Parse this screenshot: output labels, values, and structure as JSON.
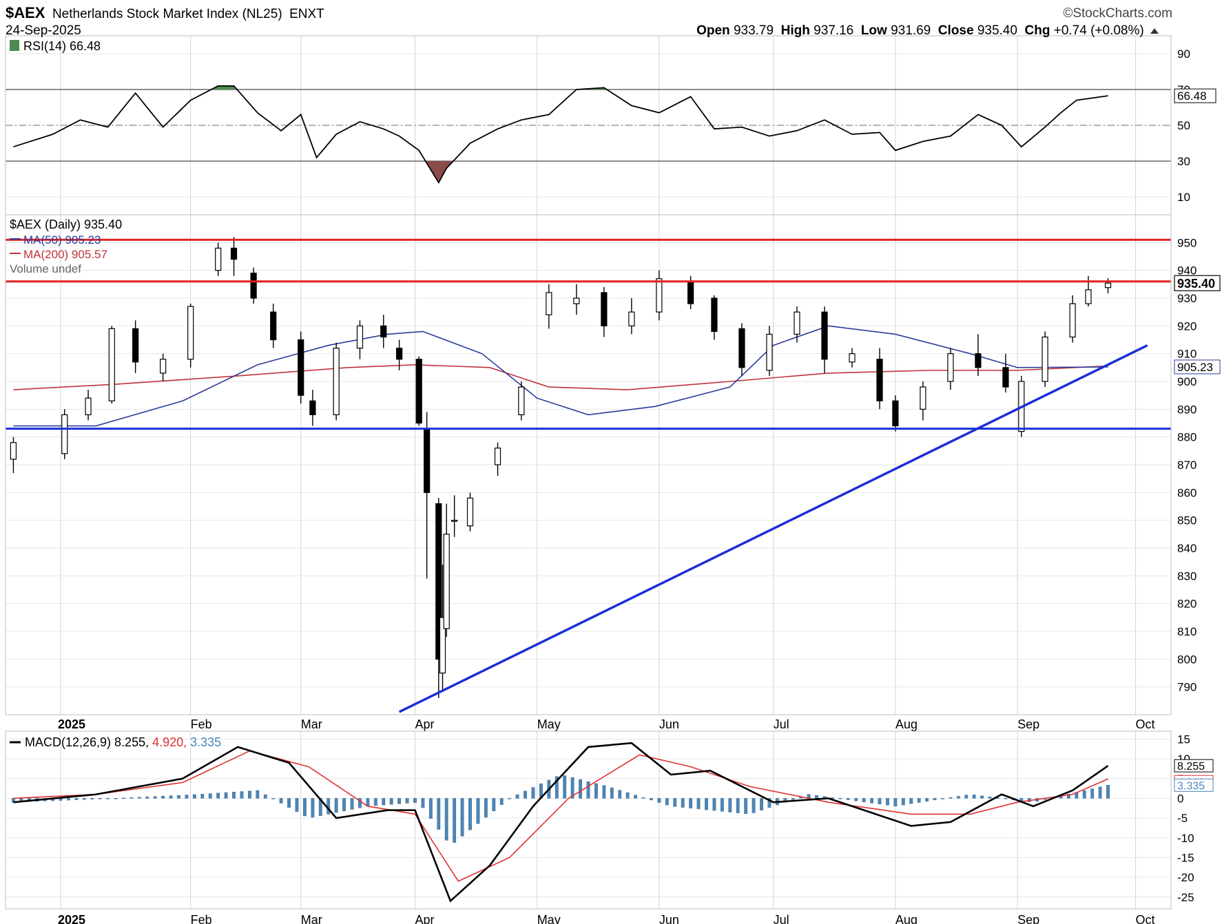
{
  "header": {
    "symbol": "$AEX",
    "name": "Netherlands Stock Market Index (NL25)",
    "exchange": "ENXT",
    "date": "24-Sep-2025",
    "logo": "©StockCharts.com",
    "open_label": "Open",
    "open": "933.79",
    "high_label": "High",
    "high": "937.16",
    "low_label": "Low",
    "low": "931.69",
    "close_label": "Close",
    "close": "935.40",
    "chg_label": "Chg",
    "chg": "+0.74 (+0.08%)"
  },
  "chart_data": [
    {
      "type": "line",
      "panel": "rsi",
      "legend": "RSI(14) 66.48",
      "ylim": [
        0,
        100
      ],
      "y_ticks": [
        10,
        30,
        50,
        70,
        90
      ],
      "ref_lines": [
        30,
        50,
        70
      ],
      "last_value_label": "66.48",
      "colors": {
        "line": "#000000",
        "overbought_fill": "#4f8a4f",
        "oversold_fill": "#8b4a4a"
      },
      "series": [
        {
          "name": "RSI(14)",
          "x": [
            "2024-12-20",
            "2024-12-30",
            "2025-01-06",
            "2025-01-13",
            "2025-01-20",
            "2025-01-27",
            "2025-02-03",
            "2025-02-10",
            "2025-02-14",
            "2025-02-20",
            "2025-02-26",
            "2025-03-03",
            "2025-03-07",
            "2025-03-12",
            "2025-03-18",
            "2025-03-24",
            "2025-03-28",
            "2025-04-02",
            "2025-04-07",
            "2025-04-09",
            "2025-04-15",
            "2025-04-22",
            "2025-04-28",
            "2025-05-05",
            "2025-05-12",
            "2025-05-19",
            "2025-05-26",
            "2025-06-02",
            "2025-06-10",
            "2025-06-16",
            "2025-06-23",
            "2025-06-30",
            "2025-07-07",
            "2025-07-14",
            "2025-07-21",
            "2025-07-28",
            "2025-08-01",
            "2025-08-08",
            "2025-08-15",
            "2025-08-22",
            "2025-08-28",
            "2025-09-02",
            "2025-09-08",
            "2025-09-12",
            "2025-09-16",
            "2025-09-24"
          ],
          "values": [
            38,
            45,
            53,
            49,
            68,
            49,
            64,
            72,
            72,
            57,
            47,
            56,
            32,
            45,
            52,
            48,
            44,
            36,
            18,
            26,
            40,
            48,
            53,
            56,
            70,
            71,
            61,
            57,
            66,
            48,
            49,
            44,
            47,
            53,
            45,
            46,
            36,
            41,
            44,
            56,
            50,
            38,
            49,
            57,
            64,
            66.48
          ]
        }
      ]
    },
    {
      "type": "candlestick",
      "panel": "price",
      "legend": [
        "$AEX (Daily) 935.40",
        "MA(50) 905.23",
        "MA(200) 905.57",
        "Volume undef"
      ],
      "ylim": [
        780,
        960
      ],
      "y_ticks": [
        790,
        800,
        810,
        820,
        830,
        840,
        850,
        860,
        870,
        880,
        890,
        900,
        910,
        920,
        930,
        940,
        950
      ],
      "last_price_label": "935.40",
      "ma50_label": "905.23",
      "ma200_label": "905.57",
      "x_ticks": [
        {
          "label": "2025",
          "date": "2025-01-01",
          "bold": true
        },
        {
          "label": "Feb",
          "date": "2025-02-03"
        },
        {
          "label": "Mar",
          "date": "2025-03-03"
        },
        {
          "label": "Apr",
          "date": "2025-04-01"
        },
        {
          "label": "May",
          "date": "2025-05-02"
        },
        {
          "label": "Jun",
          "date": "2025-06-02"
        },
        {
          "label": "Jul",
          "date": "2025-07-01"
        },
        {
          "label": "Aug",
          "date": "2025-08-01"
        },
        {
          "label": "Sep",
          "date": "2025-09-01"
        },
        {
          "label": "Oct",
          "date": "2025-10-01"
        }
      ],
      "colors": {
        "up": "#ffffff",
        "down_black": "#000000",
        "down_red": "#c0313a",
        "ma50": "#2a3a9c",
        "ma200": "#c0313a",
        "resistance": "#e02020",
        "support": "#1a2fd6"
      },
      "candles": {
        "date": [
          "2024-12-20",
          "2025-01-02",
          "2025-01-08",
          "2025-01-14",
          "2025-01-20",
          "2025-01-27",
          "2025-02-03",
          "2025-02-10",
          "2025-02-14",
          "2025-02-19",
          "2025-02-24",
          "2025-03-03",
          "2025-03-06",
          "2025-03-12",
          "2025-03-18",
          "2025-03-24",
          "2025-03-28",
          "2025-04-02",
          "2025-04-04",
          "2025-04-07",
          "2025-04-08",
          "2025-04-09",
          "2025-04-11",
          "2025-04-15",
          "2025-04-22",
          "2025-04-28",
          "2025-05-05",
          "2025-05-12",
          "2025-05-19",
          "2025-05-26",
          "2025-06-02",
          "2025-06-10",
          "2025-06-16",
          "2025-06-23",
          "2025-06-30",
          "2025-07-07",
          "2025-07-14",
          "2025-07-21",
          "2025-07-28",
          "2025-08-01",
          "2025-08-08",
          "2025-08-15",
          "2025-08-22",
          "2025-08-29",
          "2025-09-02",
          "2025-09-08",
          "2025-09-15",
          "2025-09-19",
          "2025-09-24"
        ],
        "open": [
          872,
          874,
          888,
          893,
          919,
          903,
          908,
          940,
          948,
          939,
          925,
          915,
          893,
          888,
          912,
          920,
          912,
          908,
          883,
          856,
          795,
          811,
          850,
          848,
          870,
          888,
          924,
          928,
          932,
          920,
          925,
          936,
          930,
          919,
          904,
          917,
          925,
          907,
          908,
          893,
          890,
          900,
          910,
          905,
          882,
          900,
          916,
          928,
          933.79
        ],
        "close": [
          878,
          888,
          894,
          919,
          907,
          908,
          927,
          948,
          944,
          930,
          915,
          895,
          888,
          912,
          920,
          916,
          908,
          885,
          860,
          800,
          815,
          845,
          850,
          858,
          876,
          898,
          932,
          930,
          920,
          925,
          937,
          928,
          918,
          905,
          917,
          925,
          908,
          910,
          893,
          884,
          898,
          910,
          905,
          898,
          900,
          916,
          928,
          933,
          935.4
        ],
        "high": [
          880,
          890,
          897,
          920,
          922,
          910,
          928,
          950,
          952,
          941,
          928,
          918,
          897,
          914,
          922,
          924,
          915,
          909,
          889,
          858,
          834,
          856,
          859,
          860,
          878,
          900,
          935,
          935,
          934,
          930,
          940,
          938,
          931,
          921,
          920,
          927,
          927,
          912,
          912,
          895,
          900,
          912,
          917,
          910,
          902,
          918,
          931,
          938,
          937.16
        ],
        "low": [
          867,
          872,
          886,
          892,
          903,
          900,
          905,
          938,
          938,
          928,
          912,
          892,
          884,
          886,
          908,
          912,
          904,
          884,
          829,
          786,
          789,
          808,
          844,
          846,
          866,
          886,
          919,
          924,
          916,
          917,
          922,
          926,
          915,
          902,
          902,
          914,
          903,
          905,
          890,
          882,
          886,
          897,
          902,
          896,
          880,
          898,
          914,
          927,
          931.69
        ]
      },
      "ma50": {
        "date": [
          "2024-12-20",
          "2025-01-10",
          "2025-02-01",
          "2025-02-20",
          "2025-03-10",
          "2025-03-25",
          "2025-04-03",
          "2025-04-18",
          "2025-05-02",
          "2025-05-15",
          "2025-06-01",
          "2025-06-20",
          "2025-07-01",
          "2025-07-15",
          "2025-08-01",
          "2025-08-20",
          "2025-09-01",
          "2025-09-24"
        ],
        "values": [
          884,
          884,
          893,
          906,
          913,
          917,
          918,
          910,
          894,
          888,
          891,
          898,
          913,
          920,
          917,
          910,
          905,
          905.23
        ]
      },
      "ma200": {
        "date": [
          "2024-12-20",
          "2025-01-15",
          "2025-02-15",
          "2025-03-15",
          "2025-04-01",
          "2025-04-20",
          "2025-05-05",
          "2025-05-25",
          "2025-06-20",
          "2025-07-15",
          "2025-08-10",
          "2025-09-01",
          "2025-09-24"
        ],
        "values": [
          897,
          899,
          902,
          905,
          906,
          905,
          898,
          897,
          900,
          903,
          904,
          904,
          905.57
        ]
      },
      "annotations": [
        {
          "kind": "horizontal",
          "value": 951,
          "color": "#e02020"
        },
        {
          "kind": "horizontal",
          "value": 936,
          "color": "#e02020"
        },
        {
          "kind": "horizontal",
          "value": 883,
          "color": "#1a2fd6"
        },
        {
          "kind": "trendline",
          "from": {
            "date": "2025-03-28",
            "value": 781
          },
          "to": {
            "date": "2025-10-04",
            "value": 913
          },
          "color": "#1a2fd6"
        }
      ]
    },
    {
      "type": "line",
      "panel": "macd",
      "legend": [
        "MACD(12,26,9)",
        "8.255",
        "4.920",
        "3.335"
      ],
      "ylim": [
        -28,
        17
      ],
      "y_ticks": [
        15,
        10,
        5,
        0,
        -5,
        -10,
        -15,
        -20,
        -25
      ],
      "last_labels": {
        "macd": "8.255",
        "signal": "4.920",
        "hist": "3.335"
      },
      "colors": {
        "macd": "#000000",
        "signal": "#e03030",
        "hist": "#4d86b6"
      },
      "series": [
        {
          "name": "MACD",
          "x": [
            "2024-12-20",
            "2025-01-10",
            "2025-02-01",
            "2025-02-15",
            "2025-02-28",
            "2025-03-12",
            "2025-03-25",
            "2025-04-01",
            "2025-04-10",
            "2025-04-20",
            "2025-05-01",
            "2025-05-15",
            "2025-05-26",
            "2025-06-05",
            "2025-06-15",
            "2025-07-01",
            "2025-07-15",
            "2025-08-05",
            "2025-08-15",
            "2025-08-28",
            "2025-09-05",
            "2025-09-15",
            "2025-09-24"
          ],
          "values": [
            -1,
            1,
            5,
            13,
            9,
            -5,
            -3,
            -3,
            -26,
            -17,
            -2,
            13,
            14,
            6,
            7,
            -1,
            0,
            -7,
            -6,
            1,
            -2,
            2,
            8.255
          ]
        },
        {
          "name": "Signal",
          "x": [
            "2024-12-20",
            "2025-01-10",
            "2025-02-01",
            "2025-02-18",
            "2025-03-05",
            "2025-03-20",
            "2025-04-01",
            "2025-04-12",
            "2025-04-25",
            "2025-05-10",
            "2025-05-28",
            "2025-06-10",
            "2025-06-25",
            "2025-07-15",
            "2025-08-05",
            "2025-08-20",
            "2025-09-01",
            "2025-09-15",
            "2025-09-24"
          ],
          "values": [
            0,
            1,
            4,
            12,
            8,
            -2,
            -4,
            -21,
            -15,
            0,
            11,
            8,
            3,
            -1,
            -4,
            -4,
            -1,
            1,
            4.92
          ]
        },
        {
          "name": "Histogram",
          "x": [
            "2024-12-20",
            "2025-01-15",
            "2025-02-05",
            "2025-02-20",
            "2025-03-05",
            "2025-03-20",
            "2025-04-02",
            "2025-04-10",
            "2025-04-25",
            "2025-05-08",
            "2025-05-20",
            "2025-06-05",
            "2025-06-25",
            "2025-07-10",
            "2025-08-01",
            "2025-08-20",
            "2025-09-05",
            "2025-09-24"
          ],
          "values": [
            -1,
            0,
            1,
            2,
            -5,
            -2,
            -1,
            -12,
            0,
            6,
            3,
            -2,
            -4,
            1,
            -2,
            1,
            -1,
            3.335
          ]
        }
      ]
    }
  ]
}
